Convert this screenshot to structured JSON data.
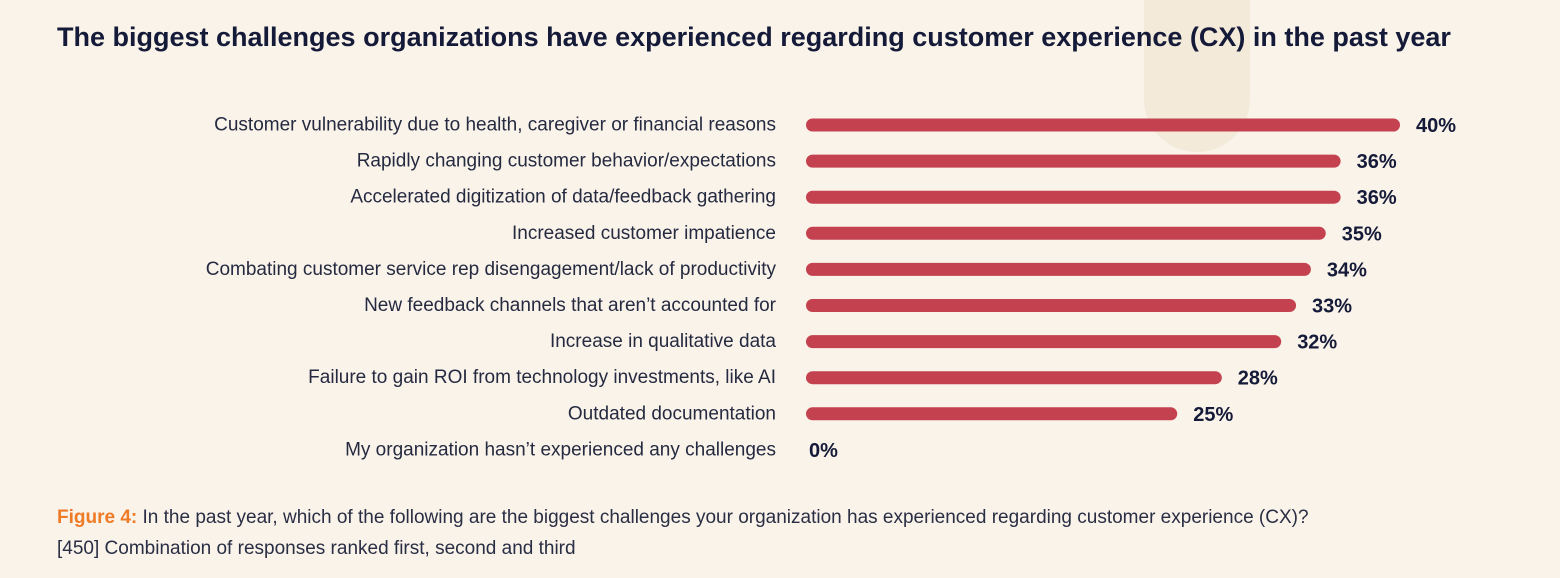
{
  "title": "The biggest challenges organizations have experienced regarding customer experience (CX) in the past year",
  "colors": {
    "bar": "#c4414f",
    "accent": "#f07b26",
    "text": "#141a38"
  },
  "chart_data": {
    "type": "bar",
    "orientation": "horizontal",
    "categories": [
      "Customer vulnerability due to health, caregiver or financial reasons",
      "Rapidly changing customer behavior/expectations",
      "Accelerated digitization of data/feedback gathering",
      "Increased customer impatience",
      "Combating customer service rep disengagement/lack of productivity",
      "New feedback channels that aren’t accounted for",
      "Increase in qualitative data",
      "Failure to gain ROI from technology investments, like AI",
      "Outdated documentation",
      "My organization hasn’t experienced any challenges"
    ],
    "values": [
      40,
      36,
      36,
      35,
      34,
      33,
      32,
      28,
      25,
      0
    ],
    "value_labels": [
      "40%",
      "36%",
      "36%",
      "35%",
      "34%",
      "33%",
      "32%",
      "28%",
      "25%",
      "0%"
    ],
    "xlim": [
      0,
      40
    ],
    "grid": false,
    "legend": "none"
  },
  "caption": {
    "figure_label": "Figure 4:",
    "question": " In the past year, which of the following are the biggest challenges your organization has experienced regarding customer experience (CX)?",
    "note": "[450] Combination of responses ranked first, second and third"
  }
}
